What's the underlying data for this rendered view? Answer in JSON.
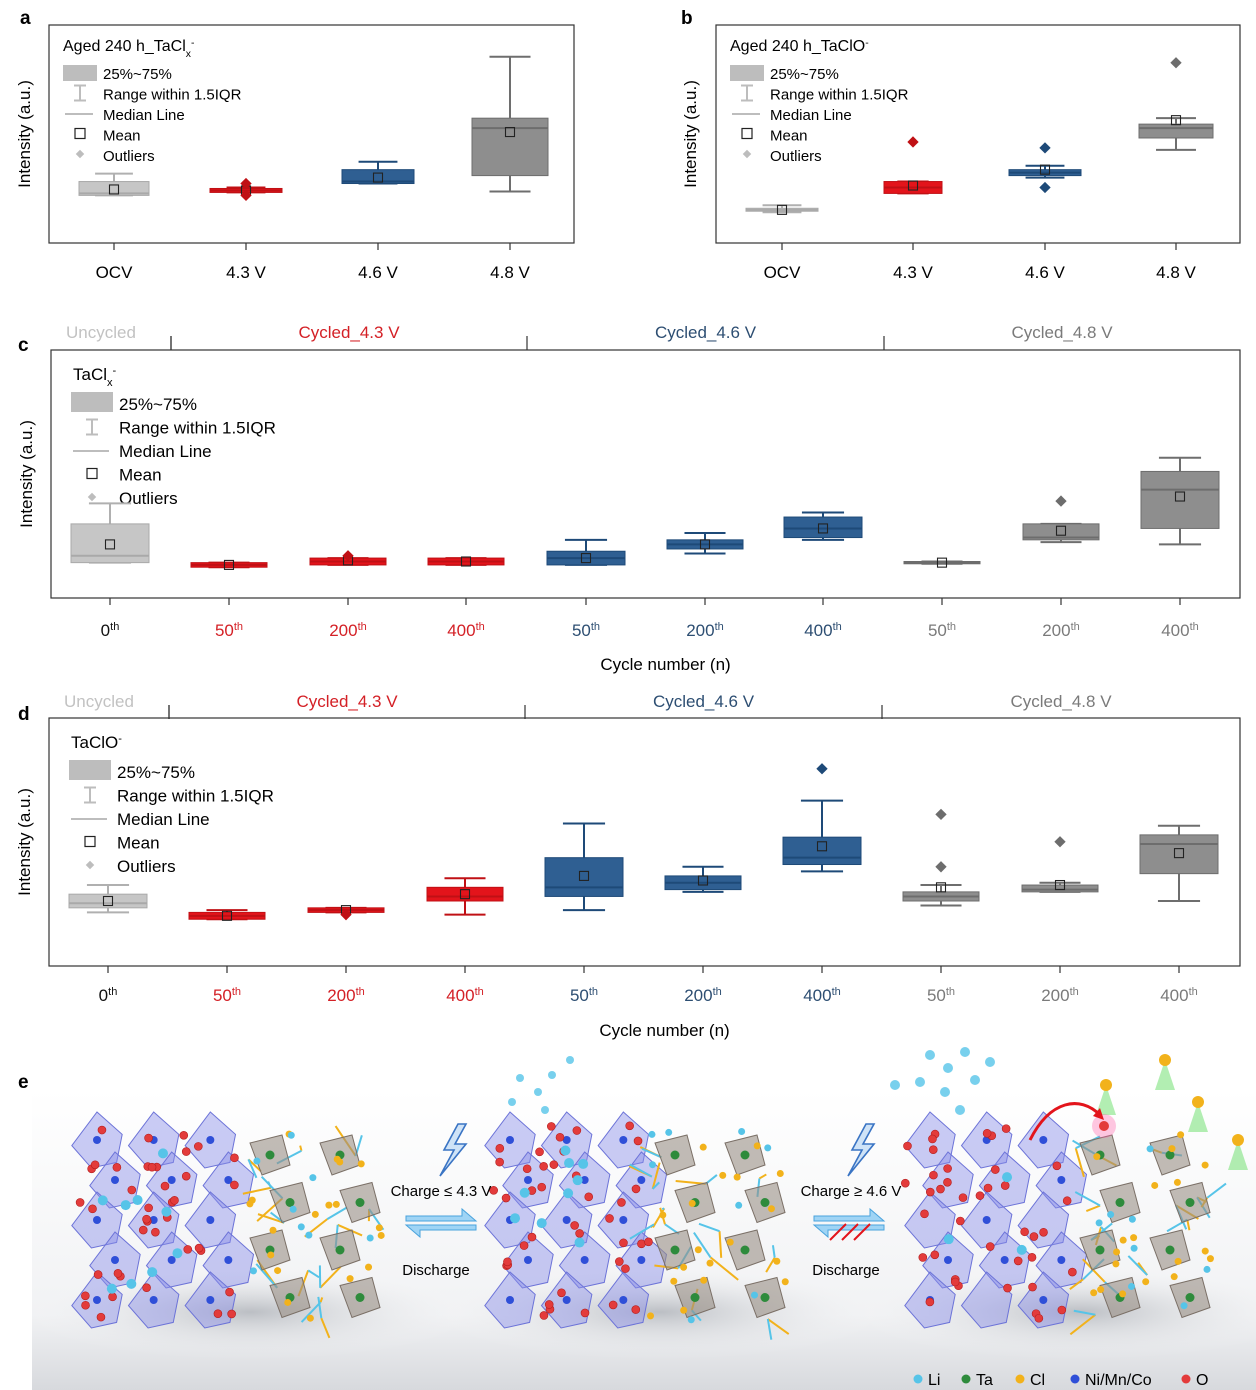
{
  "colors": {
    "ocv": "#c6c6c6",
    "v43": "#e3141b",
    "v46": "#2f5f92",
    "v48": "#8e8e8e",
    "uncycled_text": "#c2c2c2",
    "v43_text": "#d42026",
    "v46_text": "#2d4e72",
    "v48_text": "#7a7a7a",
    "li": "#56c4e8",
    "ta": "#2e8b3c",
    "cl": "#f2b21b",
    "nimnco": "#2f4fd8",
    "o": "#e33b3b"
  },
  "legend_items": {
    "box": "25%~75%",
    "range": "Range within 1.5IQR",
    "median": "Median Line",
    "mean": "Mean",
    "outliers": "Outliers"
  },
  "chart_data": [
    {
      "panel": "a",
      "type": "box",
      "title": "Aged 240 h_TaClx-",
      "title_main": "Aged 240 h_TaCl",
      "title_sub": "x",
      "title_sup": "-",
      "ylabel": "Intensity (a.u.)",
      "ylim": [
        0,
        100
      ],
      "categories": [
        {
          "label": "OCV",
          "color_key": "ocv",
          "q1": 20,
          "q3": 27,
          "median": 21,
          "mean": 23,
          "whisker_low": 20,
          "whisker_high": 31,
          "outliers": []
        },
        {
          "label": "4.3 V",
          "color_key": "v43",
          "q1": 21.5,
          "q3": 23.5,
          "median": 22.5,
          "mean": 22.5,
          "whisker_low": 21.5,
          "whisker_high": 24,
          "outliers": [
            20,
            26
          ]
        },
        {
          "label": "4.6 V",
          "color_key": "v46",
          "q1": 26,
          "q3": 33,
          "median": 27,
          "mean": 29,
          "whisker_low": 26,
          "whisker_high": 37,
          "outliers": []
        },
        {
          "label": "4.8 V",
          "color_key": "v48",
          "q1": 30,
          "q3": 59,
          "median": 54,
          "mean": 52,
          "whisker_low": 22,
          "whisker_high": 90,
          "outliers": []
        }
      ]
    },
    {
      "panel": "b",
      "type": "box",
      "title": "Aged 240 h_TaClO-",
      "title_main": "Aged 240 h_TaClO",
      "title_sub": "",
      "title_sup": "-",
      "ylabel": "Intensity (a.u.)",
      "ylim": [
        0,
        100
      ],
      "categories": [
        {
          "label": "OCV",
          "color_key": "ocv",
          "q1": 12,
          "q3": 13.5,
          "median": 12.7,
          "mean": 12.7,
          "whisker_low": 11.5,
          "whisker_high": 15,
          "outliers": []
        },
        {
          "label": "4.3 V",
          "color_key": "v43",
          "q1": 21,
          "q3": 27,
          "median": 24,
          "mean": 25,
          "whisker_low": 21,
          "whisker_high": 27,
          "outliers": [
            47
          ]
        },
        {
          "label": "4.6 V",
          "color_key": "v46",
          "q1": 30,
          "q3": 33,
          "median": 31.5,
          "mean": 33,
          "whisker_low": 29,
          "whisker_high": 35,
          "outliers": [
            24,
            44
          ]
        },
        {
          "label": "4.8 V",
          "color_key": "v48",
          "q1": 49,
          "q3": 56,
          "median": 54,
          "mean": 58,
          "whisker_low": 43,
          "whisker_high": 59,
          "outliers": [
            87
          ]
        }
      ]
    },
    {
      "panel": "c",
      "type": "box",
      "title": "TaClx-",
      "title_main": "TaCl",
      "title_sub": "x",
      "title_sup": "-",
      "ylabel": "Intensity (a.u.)",
      "xlabel": "Cycle number (n)",
      "ylim": [
        0,
        100
      ],
      "groups": [
        {
          "label": "Uncycled",
          "color_key": "uncycled_text"
        },
        {
          "label": "Cycled_4.3 V",
          "color_key": "v43_text"
        },
        {
          "label": "Cycled_4.6 V",
          "color_key": "v46_text"
        },
        {
          "label": "Cycled_4.8 V",
          "color_key": "v48_text"
        }
      ],
      "categories": [
        {
          "num": "0",
          "sup": "th",
          "group": 0,
          "color_key": "ocv",
          "q1": 12,
          "q3": 29,
          "median": 15,
          "mean": 20,
          "whisker_low": 12,
          "whisker_high": 38,
          "outliers": []
        },
        {
          "num": "50",
          "sup": "th",
          "group": 1,
          "color_key": "v43",
          "q1": 10,
          "q3": 12,
          "median": 11,
          "mean": 11,
          "whisker_low": 10,
          "whisker_high": 12,
          "outliers": []
        },
        {
          "num": "200",
          "sup": "th",
          "group": 1,
          "color_key": "v43",
          "q1": 11,
          "q3": 14,
          "median": 12.5,
          "mean": 13,
          "whisker_low": 11,
          "whisker_high": 14,
          "outliers": [
            15
          ]
        },
        {
          "num": "400",
          "sup": "th",
          "group": 1,
          "color_key": "v43",
          "q1": 11,
          "q3": 14,
          "median": 12.5,
          "mean": 12.5,
          "whisker_low": 11,
          "whisker_high": 14,
          "outliers": []
        },
        {
          "num": "50",
          "sup": "th",
          "group": 2,
          "color_key": "v46",
          "q1": 11,
          "q3": 17,
          "median": 14,
          "mean": 14,
          "whisker_low": 11,
          "whisker_high": 22,
          "outliers": []
        },
        {
          "num": "200",
          "sup": "th",
          "group": 2,
          "color_key": "v46",
          "q1": 18,
          "q3": 22,
          "median": 20,
          "mean": 20,
          "whisker_low": 16,
          "whisker_high": 25,
          "outliers": []
        },
        {
          "num": "400",
          "sup": "th",
          "group": 2,
          "color_key": "v46",
          "q1": 23,
          "q3": 32,
          "median": 27,
          "mean": 27,
          "whisker_low": 22,
          "whisker_high": 34,
          "outliers": []
        },
        {
          "num": "50",
          "sup": "th",
          "group": 3,
          "color_key": "v48",
          "q1": 11.5,
          "q3": 12.5,
          "median": 12,
          "mean": 12,
          "whisker_low": 11.5,
          "whisker_high": 12.5,
          "outliers": []
        },
        {
          "num": "200",
          "sup": "th",
          "group": 3,
          "color_key": "v48",
          "q1": 22,
          "q3": 29,
          "median": 23,
          "mean": 26,
          "whisker_low": 21,
          "whisker_high": 29,
          "outliers": [
            39
          ]
        },
        {
          "num": "400",
          "sup": "th",
          "group": 3,
          "color_key": "v48",
          "q1": 27,
          "q3": 52,
          "median": 44,
          "mean": 41,
          "whisker_low": 20,
          "whisker_high": 58,
          "outliers": []
        }
      ]
    },
    {
      "panel": "d",
      "type": "box",
      "title": "TaClO-",
      "title_main": "TaClO",
      "title_sub": "",
      "title_sup": "-",
      "ylabel": "Intensity (a.u.)",
      "xlabel": "Cycle number (n)",
      "ylim": [
        0,
        100
      ],
      "groups": [
        {
          "label": "Uncycled",
          "color_key": "uncycled_text"
        },
        {
          "label": "Cycled_4.3 V",
          "color_key": "v43_text"
        },
        {
          "label": "Cycled_4.6 V",
          "color_key": "v46_text"
        },
        {
          "label": "Cycled_4.8 V",
          "color_key": "v48_text"
        }
      ],
      "categories": [
        {
          "num": "0",
          "sup": "th",
          "group": 0,
          "color_key": "ocv",
          "q1": 22,
          "q3": 28,
          "median": 24,
          "mean": 25,
          "whisker_low": 20,
          "whisker_high": 32,
          "outliers": []
        },
        {
          "num": "50",
          "sup": "th",
          "group": 1,
          "color_key": "v43",
          "q1": 17,
          "q3": 20,
          "median": 18.5,
          "mean": 18.5,
          "whisker_low": 17,
          "whisker_high": 21,
          "outliers": []
        },
        {
          "num": "200",
          "sup": "th",
          "group": 1,
          "color_key": "v43",
          "q1": 20,
          "q3": 22,
          "median": 21,
          "mean": 21,
          "whisker_low": 20,
          "whisker_high": 22,
          "outliers": [
            19
          ]
        },
        {
          "num": "400",
          "sup": "th",
          "group": 1,
          "color_key": "v43",
          "q1": 25,
          "q3": 31,
          "median": 27,
          "mean": 28,
          "whisker_low": 19,
          "whisker_high": 35,
          "outliers": []
        },
        {
          "num": "50",
          "sup": "th",
          "group": 2,
          "color_key": "v46",
          "q1": 27,
          "q3": 44,
          "median": 31,
          "mean": 36,
          "whisker_low": 21,
          "whisker_high": 59,
          "outliers": []
        },
        {
          "num": "200",
          "sup": "th",
          "group": 2,
          "color_key": "v46",
          "q1": 30,
          "q3": 36,
          "median": 33,
          "mean": 34,
          "whisker_low": 29,
          "whisker_high": 40,
          "outliers": []
        },
        {
          "num": "400",
          "sup": "th",
          "group": 2,
          "color_key": "v46",
          "q1": 41,
          "q3": 53,
          "median": 44,
          "mean": 49,
          "whisker_low": 38,
          "whisker_high": 69,
          "outliers": [
            83
          ]
        },
        {
          "num": "50",
          "sup": "th",
          "group": 3,
          "color_key": "v48",
          "q1": 25,
          "q3": 29,
          "median": 27,
          "mean": 31,
          "whisker_low": 23,
          "whisker_high": 32,
          "outliers": [
            40,
            63
          ]
        },
        {
          "num": "200",
          "sup": "th",
          "group": 3,
          "color_key": "v48",
          "q1": 29,
          "q3": 32,
          "median": 30,
          "mean": 32,
          "whisker_low": 29,
          "whisker_high": 33,
          "outliers": [
            51
          ]
        },
        {
          "num": "400",
          "sup": "th",
          "group": 3,
          "color_key": "v48",
          "q1": 37,
          "q3": 54,
          "median": 50,
          "mean": 46,
          "whisker_low": 25,
          "whisker_high": 58,
          "outliers": []
        }
      ]
    }
  ],
  "panel_e": {
    "charge1": "Charge ≤ 4.3 V",
    "discharge1": "Discharge",
    "charge2": "Charge ≥ 4.6 V",
    "discharge2": "Discharge",
    "legend": [
      {
        "label": "Li",
        "color_key": "li"
      },
      {
        "label": "Ta",
        "color_key": "ta"
      },
      {
        "label": "Cl",
        "color_key": "cl"
      },
      {
        "label": "Ni/Mn/Co",
        "color_key": "nimnco"
      },
      {
        "label": "O",
        "color_key": "o"
      }
    ]
  },
  "panel_labels": [
    "a",
    "b",
    "c",
    "d",
    "e"
  ]
}
